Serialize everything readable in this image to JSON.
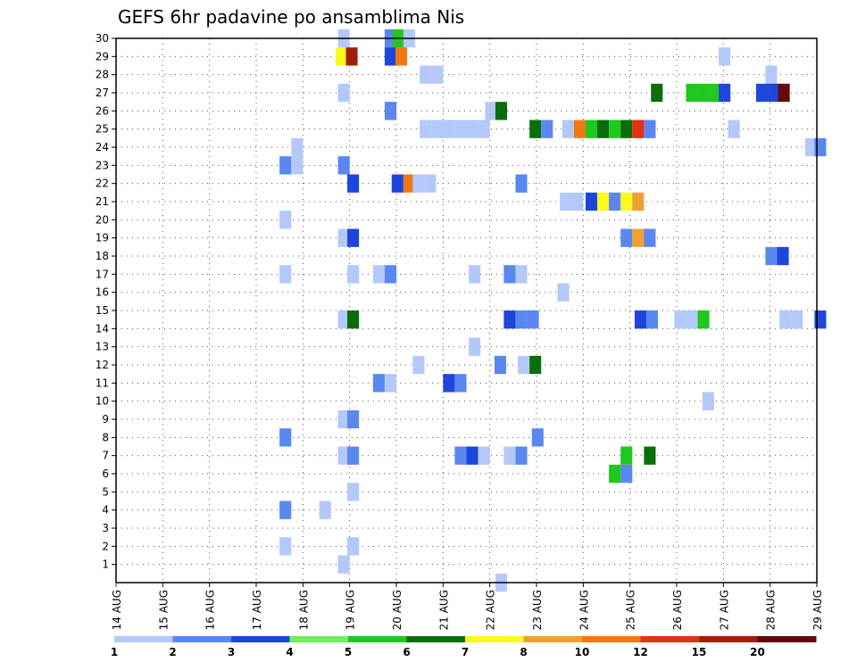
{
  "chart_data": {
    "type": "heatmap",
    "title": "GEFS 6hr padavine po ansamblima Nis",
    "x_tick_labels": [
      "14 AUG",
      "15 AUG",
      "16 AUG",
      "17 AUG",
      "18 AUG",
      "19 AUG",
      "20 AUG",
      "21 AUG",
      "22 AUG",
      "23 AUG",
      "24 AUG",
      "25 AUG",
      "26 AUG",
      "27 AUG",
      "28 AUG",
      "29 AUG"
    ],
    "y_tick_labels": [
      "1",
      "2",
      "3",
      "4",
      "5",
      "6",
      "7",
      "8",
      "9",
      "10",
      "11",
      "12",
      "13",
      "14",
      "15",
      "16",
      "17",
      "18",
      "19",
      "20",
      "21",
      "22",
      "23",
      "24",
      "25",
      "26",
      "27",
      "28",
      "29",
      "30"
    ],
    "xlim_days": [
      0,
      15
    ],
    "ylim_members": [
      0,
      30
    ],
    "grid": true,
    "legend": {
      "placement": "bottom",
      "thresholds": [
        "1",
        "2",
        "3",
        "4",
        "5",
        "6",
        "7",
        "8",
        "10",
        "12",
        "15",
        "20"
      ],
      "colors": [
        "#b4c8fa",
        "#5a87f0",
        "#1e46dc",
        "#6ef05a",
        "#1ec81e",
        "#0a6e0a",
        "#fafa1e",
        "#f0a032",
        "#f07814",
        "#e13214",
        "#a01e0a",
        "#640a0a"
      ]
    },
    "cells": [
      {
        "m": 30,
        "s": [
          [
            18.75,
            1
          ],
          [
            19.75,
            2
          ],
          [
            19.92,
            5
          ],
          [
            20.15,
            1
          ]
        ]
      },
      {
        "m": 29,
        "s": [
          [
            18.7,
            7
          ],
          [
            18.92,
            11
          ],
          [
            19.75,
            3
          ],
          [
            19.98,
            9
          ],
          [
            26.9,
            1
          ]
        ]
      },
      {
        "m": 28,
        "s": [
          [
            20.5,
            1
          ],
          [
            20.75,
            1
          ],
          [
            27.9,
            1
          ]
        ]
      },
      {
        "m": 27,
        "s": [
          [
            18.75,
            1
          ],
          [
            25.45,
            6
          ],
          [
            26.2,
            5
          ],
          [
            26.45,
            5
          ],
          [
            26.7,
            5
          ],
          [
            26.9,
            3
          ],
          [
            27.7,
            3
          ],
          [
            27.95,
            3
          ],
          [
            28.17,
            12
          ]
        ]
      },
      {
        "m": 26,
        "s": [
          [
            19.75,
            2
          ],
          [
            21.9,
            1
          ],
          [
            22.12,
            6
          ]
        ]
      },
      {
        "m": 25,
        "s": [
          [
            20.5,
            1
          ],
          [
            20.75,
            1
          ],
          [
            21.0,
            1
          ],
          [
            21.25,
            1
          ],
          [
            21.5,
            1
          ],
          [
            21.75,
            1
          ],
          [
            22.85,
            6
          ],
          [
            23.1,
            2
          ],
          [
            23.55,
            1
          ],
          [
            23.8,
            9
          ],
          [
            24.05,
            5
          ],
          [
            24.3,
            6
          ],
          [
            24.55,
            5
          ],
          [
            24.8,
            6
          ],
          [
            25.05,
            10
          ],
          [
            25.3,
            2
          ],
          [
            27.1,
            1
          ]
        ]
      },
      {
        "m": 24,
        "s": [
          [
            17.75,
            1
          ],
          [
            28.75,
            1
          ],
          [
            28.95,
            2
          ]
        ]
      },
      {
        "m": 23,
        "s": [
          [
            17.5,
            2
          ],
          [
            17.75,
            1
          ],
          [
            18.75,
            2
          ]
        ]
      },
      {
        "m": 22,
        "s": [
          [
            18.95,
            3
          ],
          [
            19.9,
            3
          ],
          [
            20.15,
            9
          ],
          [
            20.35,
            1
          ],
          [
            20.6,
            1
          ],
          [
            22.55,
            2
          ]
        ]
      },
      {
        "m": 21,
        "s": [
          [
            23.5,
            1
          ],
          [
            23.75,
            1
          ],
          [
            24.05,
            3
          ],
          [
            24.3,
            7
          ],
          [
            24.55,
            2
          ],
          [
            24.8,
            7
          ],
          [
            25.05,
            8
          ]
        ]
      },
      {
        "m": 20,
        "s": [
          [
            17.5,
            1
          ]
        ]
      },
      {
        "m": 19,
        "s": [
          [
            18.75,
            1
          ],
          [
            18.95,
            3
          ],
          [
            24.8,
            2
          ],
          [
            25.05,
            8
          ],
          [
            25.3,
            2
          ]
        ]
      },
      {
        "m": 18,
        "s": [
          [
            27.9,
            2
          ],
          [
            28.15,
            3
          ]
        ]
      },
      {
        "m": 17,
        "s": [
          [
            17.5,
            1
          ],
          [
            18.95,
            1
          ],
          [
            19.5,
            1
          ],
          [
            19.75,
            2
          ],
          [
            21.55,
            1
          ],
          [
            22.3,
            2
          ],
          [
            22.55,
            1
          ]
        ]
      },
      {
        "m": 16,
        "s": [
          [
            23.45,
            1
          ]
        ]
      },
      {
        "m": 14.5,
        "s": [
          [
            18.75,
            1
          ],
          [
            18.95,
            6
          ],
          [
            22.3,
            3
          ],
          [
            22.55,
            2
          ],
          [
            22.8,
            2
          ],
          [
            25.1,
            3
          ],
          [
            25.35,
            2
          ],
          [
            25.95,
            1
          ],
          [
            26.2,
            1
          ],
          [
            26.45,
            5
          ],
          [
            28.2,
            1
          ],
          [
            28.45,
            1
          ],
          [
            28.95,
            3
          ]
        ]
      },
      {
        "m": 13,
        "s": [
          [
            21.55,
            1
          ]
        ]
      },
      {
        "m": 12,
        "s": [
          [
            20.35,
            1
          ],
          [
            22.1,
            2
          ],
          [
            22.6,
            1
          ],
          [
            22.85,
            6
          ]
        ]
      },
      {
        "m": 11,
        "s": [
          [
            19.5,
            2
          ],
          [
            19.75,
            1
          ],
          [
            21.0,
            3
          ],
          [
            21.25,
            2
          ]
        ]
      },
      {
        "m": 10,
        "s": [
          [
            26.55,
            1
          ]
        ]
      },
      {
        "m": 9,
        "s": [
          [
            18.75,
            1
          ],
          [
            18.95,
            2
          ]
        ]
      },
      {
        "m": 8,
        "s": [
          [
            17.5,
            2
          ],
          [
            22.9,
            2
          ]
        ]
      },
      {
        "m": 7,
        "s": [
          [
            18.75,
            1
          ],
          [
            18.95,
            2
          ],
          [
            21.25,
            2
          ],
          [
            21.5,
            3
          ],
          [
            21.75,
            1
          ],
          [
            22.3,
            1
          ],
          [
            22.55,
            2
          ],
          [
            24.8,
            5
          ],
          [
            25.3,
            6
          ]
        ]
      },
      {
        "m": 6,
        "s": [
          [
            24.55,
            5
          ],
          [
            24.8,
            2
          ]
        ]
      },
      {
        "m": 5,
        "s": [
          [
            18.95,
            1
          ]
        ]
      },
      {
        "m": 4,
        "s": [
          [
            17.5,
            2
          ],
          [
            18.35,
            1
          ]
        ]
      },
      {
        "m": 2,
        "s": [
          [
            17.5,
            1
          ],
          [
            18.95,
            1
          ]
        ]
      },
      {
        "m": 1,
        "s": [
          [
            18.75,
            1
          ]
        ]
      },
      {
        "m": 0,
        "s": [
          [
            22.12,
            1
          ]
        ]
      }
    ]
  }
}
